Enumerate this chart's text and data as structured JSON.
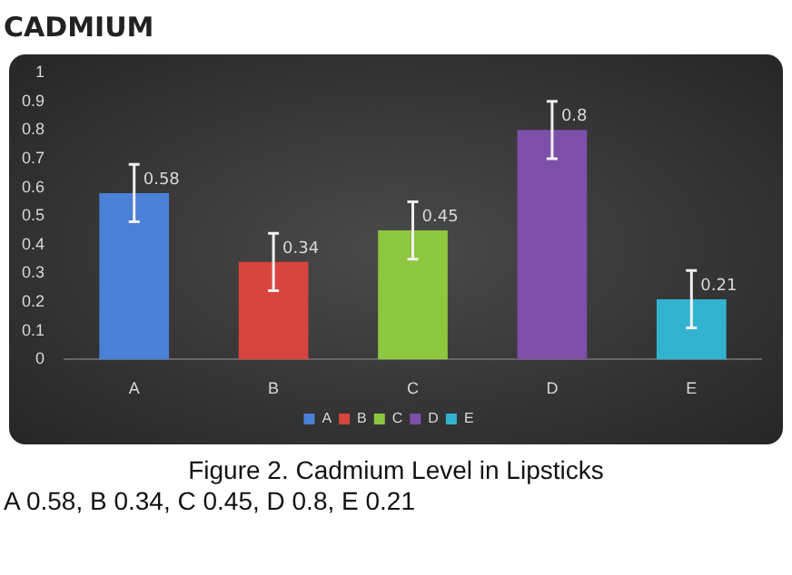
{
  "chart_data": {
    "type": "bar",
    "title": "CADMIUM",
    "categories": [
      "A",
      "B",
      "C",
      "D",
      "E"
    ],
    "series": [
      {
        "name": "A",
        "color": "#4a80d6",
        "values": [
          0.58,
          null,
          null,
          null,
          null
        ],
        "errors": [
          0.1,
          null,
          null,
          null,
          null
        ]
      },
      {
        "name": "B",
        "color": "#d8443e",
        "values": [
          null,
          0.34,
          null,
          null,
          null
        ],
        "errors": [
          null,
          0.1,
          null,
          null,
          null
        ]
      },
      {
        "name": "C",
        "color": "#8dc63f",
        "values": [
          null,
          null,
          0.45,
          null,
          null
        ],
        "errors": [
          null,
          null,
          0.1,
          null,
          null
        ]
      },
      {
        "name": "D",
        "color": "#7d4fa9",
        "values": [
          null,
          null,
          null,
          0.8,
          null
        ],
        "errors": [
          null,
          null,
          null,
          0.1,
          null
        ]
      },
      {
        "name": "E",
        "color": "#31b3d0",
        "values": [
          null,
          null,
          null,
          null,
          0.21
        ],
        "errors": [
          null,
          null,
          null,
          null,
          0.1
        ]
      }
    ],
    "ylim": [
      0,
      1
    ],
    "yticks": [
      0,
      0.1,
      0.2,
      0.3,
      0.4,
      0.5,
      0.6,
      0.7,
      0.8,
      0.9,
      1
    ],
    "grid": false,
    "legend": "bottom",
    "data_labels": true,
    "annotations": [
      "Figure 2. Cadmium Level in Lipsticks",
      "A 0.58, B 0.34, C 0.45, D 0.8, E 0.21"
    ]
  }
}
